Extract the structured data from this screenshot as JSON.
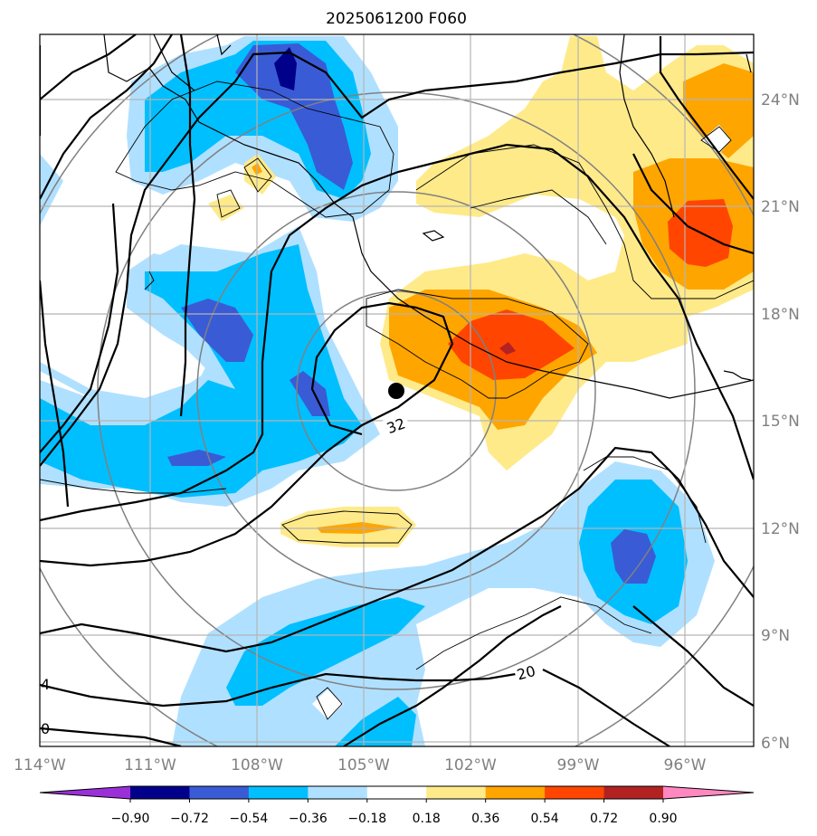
{
  "title": "2025061200 F060",
  "lon_labels": [
    "114°W",
    "111°W",
    "108°W",
    "105°W",
    "102°W",
    "99°W",
    "96°W"
  ],
  "lat_labels": [
    "24°N",
    "21°N",
    "18°N",
    "15°N",
    "12°N",
    "9°N",
    "6°N"
  ],
  "colorbar": {
    "tick_labels": [
      "−0.90",
      "−0.72",
      "−0.54",
      "−0.36",
      "−0.18",
      "0.18",
      "0.36",
      "0.54",
      "0.72",
      "0.90"
    ],
    "colors": [
      "#9b30d9",
      "#00008b",
      "#3a5bd6",
      "#00bfff",
      "#b0e0ff",
      "#ffffff",
      "#ffea8a",
      "#ffa500",
      "#ff4500",
      "#b22222",
      "#ff88c0"
    ]
  },
  "contour_labels": [
    "32",
    "20",
    "4",
    "0"
  ],
  "storm_center_symbol": "filled-circle-marker",
  "icons": {
    "colorbar_extend": "triangle-arrow"
  },
  "chart_data": {
    "type": "heatmap",
    "title": "2025061200 F060",
    "xlim_lon": [
      -114,
      -94
    ],
    "ylim_lat": [
      5.9,
      26
    ],
    "contour_levels": [
      -0.9,
      -0.72,
      -0.54,
      -0.36,
      -0.18,
      0.18,
      0.36,
      0.54,
      0.72,
      0.9
    ],
    "storm_center": {
      "lon": -104.2,
      "lat": 15.9
    },
    "line_contour_values": [
      32,
      20,
      4,
      0
    ]
  }
}
